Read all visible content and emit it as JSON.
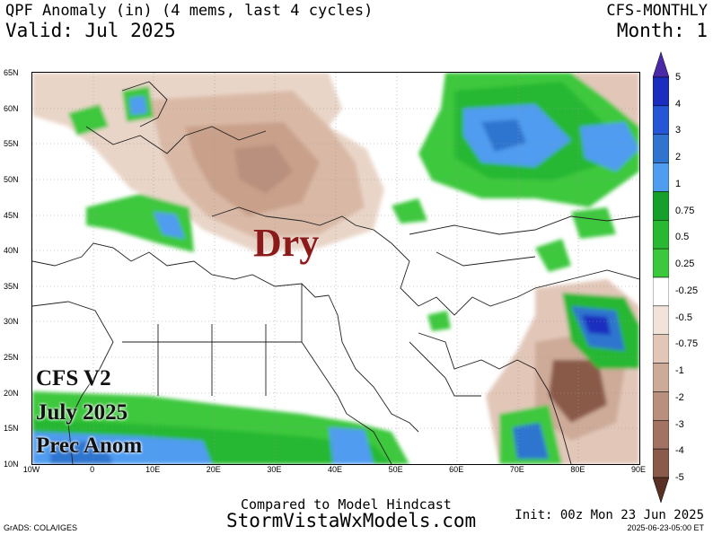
{
  "header": {
    "title": "QPF Anomaly (in) (4 mems, last 4 cycles)",
    "valid": "Valid: Jul 2025",
    "model": "CFS-MONTHLY",
    "month": "Month: 1"
  },
  "map": {
    "lat_labels": [
      "65N",
      "60N",
      "55N",
      "50N",
      "45N",
      "40N",
      "35N",
      "30N",
      "25N",
      "20N",
      "15N",
      "10N"
    ],
    "lon_labels": [
      "10W",
      "0",
      "10E",
      "20E",
      "30E",
      "40E",
      "50E",
      "60E",
      "70E",
      "80E",
      "90E"
    ],
    "lon_range": [
      -10,
      90
    ],
    "lat_range": [
      10,
      65
    ],
    "annotation": "Dry",
    "overlay_lines": [
      "CFS V2",
      "July 2025",
      "Prec Anom"
    ]
  },
  "colorbar": {
    "labels": [
      "5",
      "4",
      "3",
      "2",
      "1",
      "0.75",
      "0.5",
      "0.25",
      "-0.25",
      "-0.5",
      "-0.75",
      "-1",
      "-2",
      "-3",
      "-4",
      "-5"
    ],
    "colors": [
      "#1a2dbf",
      "#2456d6",
      "#2f74cf",
      "#4f9cf0",
      "#14a02a",
      "#28b831",
      "#3cc83c",
      "#ffffff",
      "#f1e3da",
      "#e2c7b9",
      "#ceaa98",
      "#b98f7d",
      "#a27362",
      "#8a5a4a",
      "#704437",
      "#5a3024"
    ]
  },
  "footer": {
    "compared": "Compared to Model Hindcast",
    "site": "StormVistaWxModels.com",
    "init": "Init: 00z Mon 23 Jun 2025",
    "stamp": "2025-06-23-05:00 ET",
    "grads": "GrADS: COLA/IGES"
  }
}
